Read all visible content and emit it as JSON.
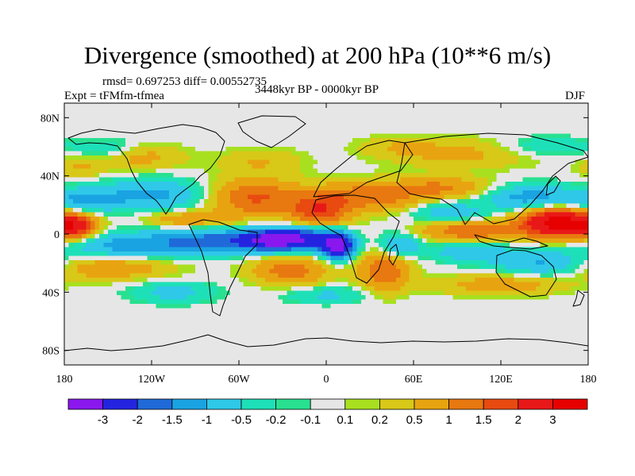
{
  "chart_data": {
    "type": "heatmap",
    "title": "Divergence (smoothed) at 200 hPa (10**6 m/s)",
    "stats_text": "rmsd= 0.697253 diff= 0.00552735",
    "experiment": "Expt = tFMfm-tfmea",
    "period": "3448kyr BP - 0000kyr BP",
    "season": "DJF",
    "x_range": [
      -180,
      180
    ],
    "y_range": [
      -90,
      90
    ],
    "x_ticks": [
      {
        "value": -180,
        "label": "180"
      },
      {
        "value": -120,
        "label": "120W"
      },
      {
        "value": -60,
        "label": "60W"
      },
      {
        "value": 0,
        "label": "0"
      },
      {
        "value": 60,
        "label": "60E"
      },
      {
        "value": 120,
        "label": "120E"
      },
      {
        "value": 180,
        "label": "180"
      }
    ],
    "y_ticks": [
      {
        "value": 80,
        "label": "80N"
      },
      {
        "value": 40,
        "label": "40N"
      },
      {
        "value": 0,
        "label": "0"
      },
      {
        "value": -40,
        "label": "40S"
      },
      {
        "value": -80,
        "label": "80S"
      }
    ],
    "levels": [
      -3,
      -2,
      -1.5,
      -1,
      -0.5,
      -0.2,
      -0.1,
      0.1,
      0.2,
      0.5,
      1,
      1.5,
      2,
      3
    ],
    "colors": [
      "#8a18ee",
      "#2424e0",
      "#1f6ad8",
      "#1aa3e2",
      "#2fc8e8",
      "#1ee0b8",
      "#28e090",
      "#e6e6e6",
      "#a8e020",
      "#d8c818",
      "#e8a410",
      "#e87810",
      "#e84a10",
      "#e81818",
      "#e60000"
    ],
    "anomalies": [
      {
        "lon": -35,
        "lat": -4,
        "amp": -3.2,
        "sx": 16,
        "sy": 5
      },
      {
        "lon": 8,
        "lat": -8,
        "amp": -3.5,
        "sx": 8,
        "sy": 6
      },
      {
        "lon": -12,
        "lat": -2,
        "amp": -1.6,
        "sx": 14,
        "sy": 6
      },
      {
        "lon": -80,
        "lat": -5,
        "amp": -1.7,
        "sx": 28,
        "sy": 6
      },
      {
        "lon": -140,
        "lat": -8,
        "amp": -1.2,
        "sx": 26,
        "sy": 6
      },
      {
        "lon": -170,
        "lat": 22,
        "amp": -1.0,
        "sx": 18,
        "sy": 6
      },
      {
        "lon": -120,
        "lat": 27,
        "amp": -1.2,
        "sx": 28,
        "sy": 7
      },
      {
        "lon": 140,
        "lat": 25,
        "amp": -1.3,
        "sx": 20,
        "sy": 6
      },
      {
        "lon": 85,
        "lat": 15,
        "amp": -0.9,
        "sx": 18,
        "sy": 5
      },
      {
        "lon": 150,
        "lat": -20,
        "amp": -1.1,
        "sx": 22,
        "sy": 6
      },
      {
        "lon": 100,
        "lat": -12,
        "amp": -1.0,
        "sx": 18,
        "sy": 5
      },
      {
        "lon": 50,
        "lat": -8,
        "amp": -1.2,
        "sx": 10,
        "sy": 6
      },
      {
        "lon": -105,
        "lat": -40,
        "amp": -0.7,
        "sx": 20,
        "sy": 5
      },
      {
        "lon": 0,
        "lat": -42,
        "amp": -0.6,
        "sx": 20,
        "sy": 4
      },
      {
        "lon": 150,
        "lat": 60,
        "amp": -0.5,
        "sx": 22,
        "sy": 5
      },
      {
        "lon": -150,
        "lat": 58,
        "amp": -0.6,
        "sx": 15,
        "sy": 5
      },
      {
        "lon": 160,
        "lat": 8,
        "amp": 3.5,
        "sx": 18,
        "sy": 7
      },
      {
        "lon": -172,
        "lat": 5,
        "amp": 2.0,
        "sx": 10,
        "sy": 6
      },
      {
        "lon": -95,
        "lat": 10,
        "amp": 0.9,
        "sx": 20,
        "sy": 4
      },
      {
        "lon": -50,
        "lat": 25,
        "amp": 1.6,
        "sx": 22,
        "sy": 9
      },
      {
        "lon": -5,
        "lat": 15,
        "amp": 1.8,
        "sx": 14,
        "sy": 8
      },
      {
        "lon": 30,
        "lat": 26,
        "amp": 1.4,
        "sx": 26,
        "sy": 7
      },
      {
        "lon": 80,
        "lat": 32,
        "amp": 1.0,
        "sx": 22,
        "sy": 5
      },
      {
        "lon": 100,
        "lat": 2,
        "amp": 1.5,
        "sx": 24,
        "sy": 5
      },
      {
        "lon": 40,
        "lat": -25,
        "amp": 1.5,
        "sx": 12,
        "sy": 10
      },
      {
        "lon": -25,
        "lat": -25,
        "amp": 1.3,
        "sx": 18,
        "sy": 7
      },
      {
        "lon": -150,
        "lat": -23,
        "amp": 0.9,
        "sx": 30,
        "sy": 6
      },
      {
        "lon": 120,
        "lat": -35,
        "amp": 0.8,
        "sx": 30,
        "sy": 5
      },
      {
        "lon": -130,
        "lat": 53,
        "amp": 0.7,
        "sx": 22,
        "sy": 6
      },
      {
        "lon": 95,
        "lat": 55,
        "amp": 0.6,
        "sx": 35,
        "sy": 7
      },
      {
        "lon": -45,
        "lat": 50,
        "amp": 0.5,
        "sx": 20,
        "sy": 6
      },
      {
        "lon": 50,
        "lat": 60,
        "amp": 0.4,
        "sx": 20,
        "sy": 5
      },
      {
        "lon": -170,
        "lat": 45,
        "amp": 0.5,
        "sx": 12,
        "sy": 5
      }
    ]
  }
}
